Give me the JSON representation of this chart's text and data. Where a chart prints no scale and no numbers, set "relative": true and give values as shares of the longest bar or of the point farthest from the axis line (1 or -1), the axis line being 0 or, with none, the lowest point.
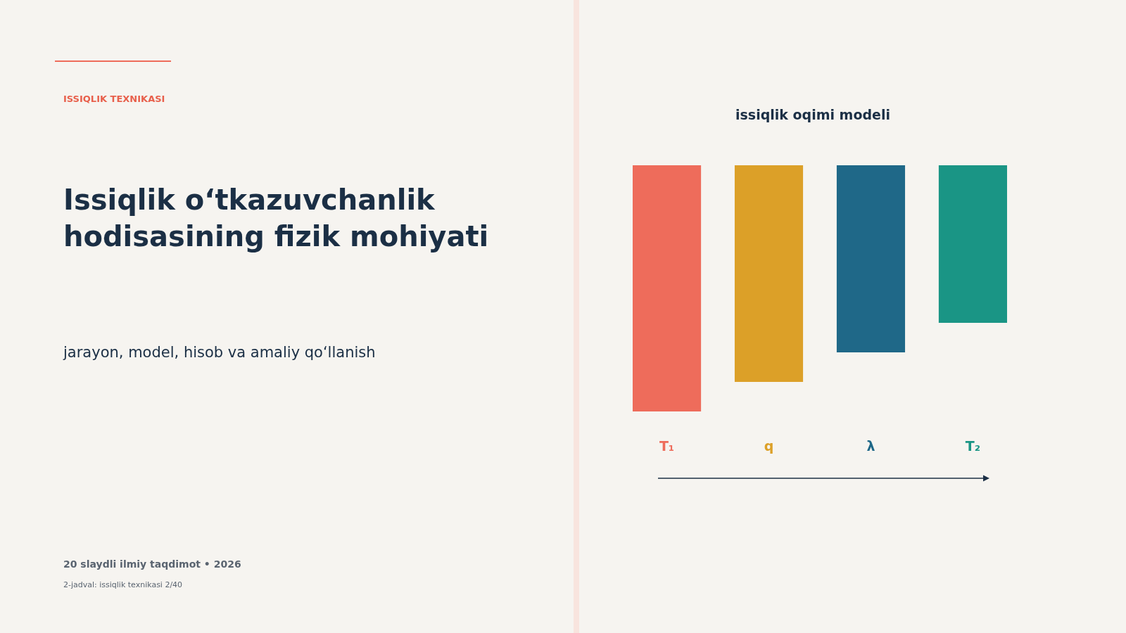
{
  "chart_data": {
    "type": "bar",
    "title": "issiqlik oqimi modeli",
    "relative": true,
    "categories": [
      "T₁",
      "q",
      "λ",
      "T₂"
    ],
    "values": [
      -1,
      -0.88,
      -0.76,
      -0.64
    ],
    "colors": [
      "#ee6c5b",
      "#dca028",
      "#1f6888",
      "#1a9585"
    ],
    "annotations": [
      "ISSIQLIK TEXNIKASI",
      "Issiqlik o‘tkazuvchanlik hodisasining fizik mohiyati",
      "jarayon, model, hisob va amaliy qo‘llanish",
      "20 slaydli ilmiy taqdimot  •  2026",
      "2-jadval: issiqlik texnikasi  2/40"
    ]
  }
}
